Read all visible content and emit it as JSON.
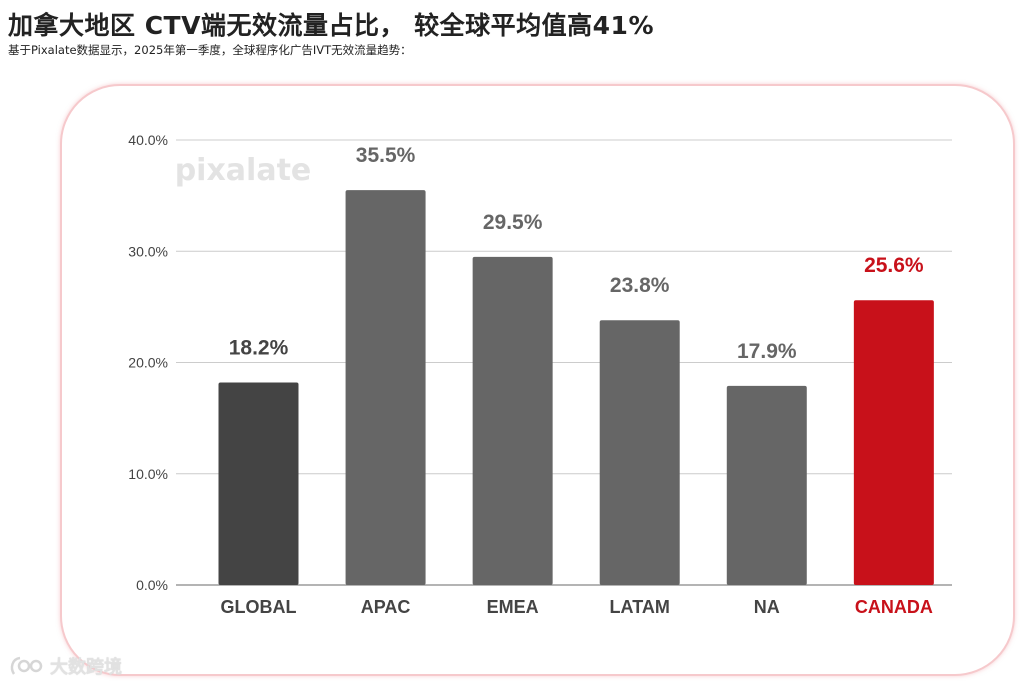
{
  "header": {
    "title": "加拿大地区 CTV端无效流量占比， 较全球平均值高41%",
    "subtitle": "基于Pixalate数据显示，2025年第一季度，全球程序化广告IVT无效流量趋势："
  },
  "watermark": {
    "chart_brand": "pixalate",
    "footer_brand": "大数跨境"
  },
  "colors": {
    "global_bar": "#444444",
    "region_bar": "#666666",
    "highlight_bar": "#c8111a",
    "value_label": "#666666",
    "global_value_label": "#444444",
    "highlight_label": "#c8111a",
    "grid": "#cccccc",
    "axis_text": "#444444"
  },
  "chart_data": {
    "type": "bar",
    "title": "",
    "xlabel": "",
    "ylabel": "",
    "categories": [
      "GLOBAL",
      "APAC",
      "EMEA",
      "LATAM",
      "NA",
      "CANADA"
    ],
    "values": [
      18.2,
      35.5,
      29.5,
      23.8,
      17.9,
      25.6
    ],
    "value_labels": [
      "18.2%",
      "35.5%",
      "29.5%",
      "23.8%",
      "17.9%",
      "25.6%"
    ],
    "highlight": "CANADA",
    "ylim": [
      0,
      40
    ],
    "yticks": [
      0,
      10,
      20,
      30,
      40
    ],
    "ytick_labels": [
      "0.0%",
      "10.0%",
      "20.0%",
      "30.0%",
      "40.0%"
    ],
    "grid": true,
    "legend": "none"
  }
}
